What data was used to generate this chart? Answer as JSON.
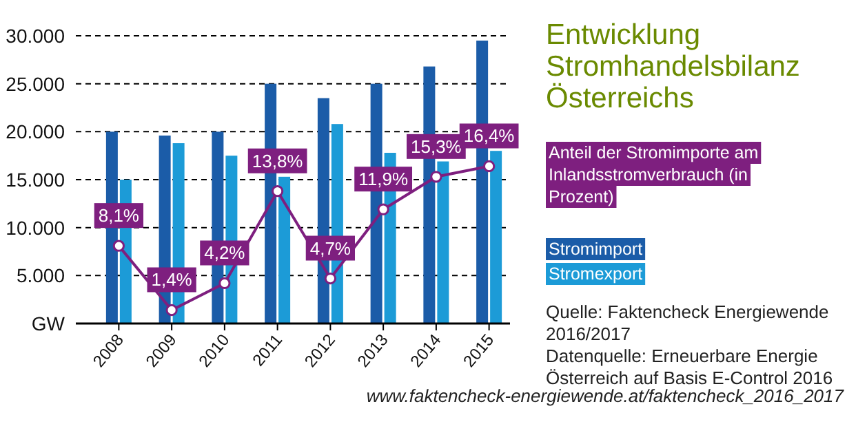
{
  "chart_data": {
    "type": "bar",
    "title": "Entwicklung Stromhandelsbilanz Österreichs",
    "categories": [
      "2008",
      "2009",
      "2010",
      "2011",
      "2012",
      "2013",
      "2014",
      "2015"
    ],
    "series": [
      {
        "name": "Stromimport",
        "color": "#1b5ca8",
        "values": [
          20000,
          19600,
          20000,
          25000,
          23500,
          25000,
          26800,
          29500
        ]
      },
      {
        "name": "Stromexport",
        "color": "#1c9bd7",
        "values": [
          15000,
          18800,
          17500,
          15300,
          20800,
          17800,
          16900,
          18000
        ]
      },
      {
        "name": "Anteil der Stromimporte am Inlandsstromverbrauch (in Prozent)",
        "type": "line",
        "axis": "y2",
        "color": "#7e1f7f",
        "values": [
          8.1,
          1.4,
          4.2,
          13.8,
          4.7,
          11.9,
          15.3,
          16.4
        ],
        "value_labels": [
          "8,1%",
          "1,4%",
          "4,2%",
          "13,8%",
          "4,7%",
          "11,9%",
          "15,3%",
          "16,4%"
        ]
      }
    ],
    "ylim": [
      0,
      30000
    ],
    "yticks": [
      {
        "value": 0,
        "label": "GW"
      },
      {
        "value": 5000,
        "label": "5.000"
      },
      {
        "value": 10000,
        "label": "10.000"
      },
      {
        "value": 15000,
        "label": "15.000"
      },
      {
        "value": 20000,
        "label": "20.000"
      },
      {
        "value": 25000,
        "label": "25.000"
      },
      {
        "value": 30000,
        "label": "30.000"
      }
    ],
    "y2lim": [
      0,
      30
    ],
    "grid": "y",
    "legend": "right",
    "marker": "circle",
    "line_style": "solid",
    "annotations": [
      "Quelle: Faktencheck Energiewende 2016/2017",
      "Datenquelle: Erneuerbare Energie Österreich auf Basis E-Control 2016",
      "www.faktencheck-energiewende.at/faktencheck_2016_2017"
    ]
  }
}
